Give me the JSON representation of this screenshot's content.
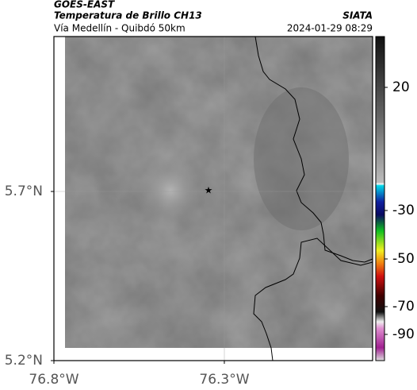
{
  "header": {
    "title": "GOES-EAST",
    "subtitle": "Temperatura de Brillo CH13",
    "source": "SIATA",
    "route": "Vía Medellín - Quibdó 50km",
    "datetime": "2024-01-29 08:29"
  },
  "map": {
    "xlim": [
      -76.8,
      -75.865
    ],
    "ylim": [
      5.2,
      6.158
    ],
    "xticks": [
      {
        "value": -76.8,
        "label": "76.8°W"
      },
      {
        "value": -76.3,
        "label": "76.3°W"
      }
    ],
    "yticks": [
      {
        "value": 5.7,
        "label": "5.7°N"
      },
      {
        "value": 5.2,
        "label": "5.2°N"
      }
    ]
  },
  "colorbar": {
    "ticks": [
      20,
      -30,
      -50,
      -70,
      -90
    ]
  }
}
